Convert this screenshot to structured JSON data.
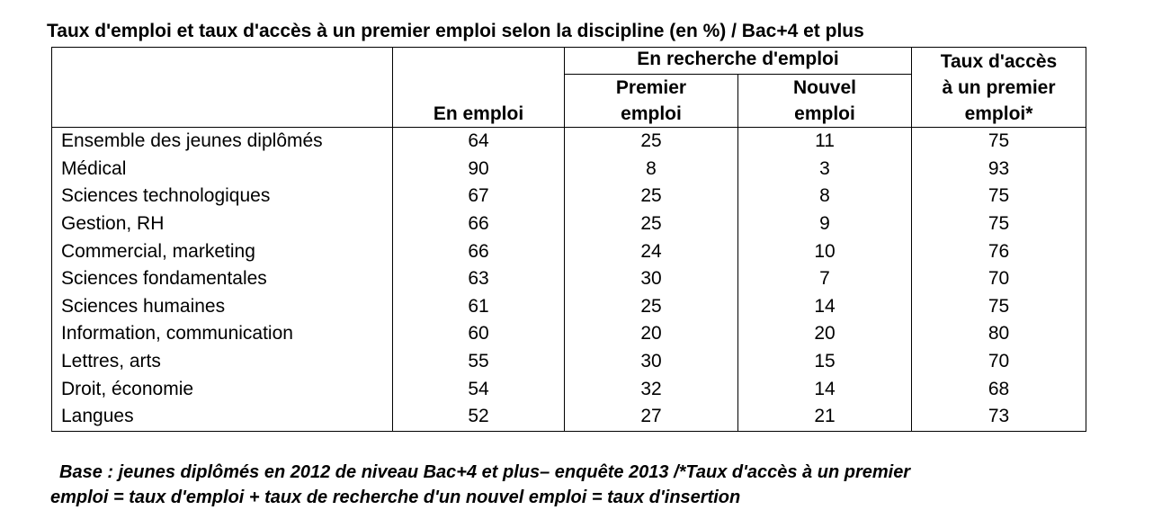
{
  "title": "Taux d'emploi et taux d'accès à un premier emploi selon la discipline (en %) / Bac+4 et plus",
  "table": {
    "headers": {
      "en_emploi": "En emploi",
      "group": "En recherche d'emploi",
      "premier_l1": "Premier",
      "premier_l2": "emploi",
      "nouvel_l1": "Nouvel",
      "nouvel_l2": "emploi",
      "acces_l1": "Taux d'accès",
      "acces_l2": "à un premier",
      "acces_l3": "emploi*"
    },
    "rows": [
      {
        "label": "Ensemble des jeunes diplômés",
        "en_emploi": "64",
        "premier": "25",
        "nouvel": "11",
        "acces": "75"
      },
      {
        "label": "Médical",
        "en_emploi": "90",
        "premier": "8",
        "nouvel": "3",
        "acces": "93"
      },
      {
        "label": "Sciences technologiques",
        "en_emploi": "67",
        "premier": "25",
        "nouvel": "8",
        "acces": "75"
      },
      {
        "label": "Gestion, RH",
        "en_emploi": "66",
        "premier": "25",
        "nouvel": "9",
        "acces": "75"
      },
      {
        "label": "Commercial, marketing",
        "en_emploi": "66",
        "premier": "24",
        "nouvel": "10",
        "acces": "76"
      },
      {
        "label": "Sciences fondamentales",
        "en_emploi": "63",
        "premier": "30",
        "nouvel": "7",
        "acces": "70"
      },
      {
        "label": "Sciences humaines",
        "en_emploi": "61",
        "premier": "25",
        "nouvel": "14",
        "acces": "75"
      },
      {
        "label": "Information, communication",
        "en_emploi": "60",
        "premier": "20",
        "nouvel": "20",
        "acces": "80"
      },
      {
        "label": "Lettres, arts",
        "en_emploi": "55",
        "premier": "30",
        "nouvel": "15",
        "acces": "70"
      },
      {
        "label": "Droit, économie",
        "en_emploi": "54",
        "premier": "32",
        "nouvel": "14",
        "acces": "68"
      },
      {
        "label": "Langues",
        "en_emploi": "52",
        "premier": "27",
        "nouvel": "21",
        "acces": "73"
      }
    ]
  },
  "note": {
    "line1": "Base : jeunes diplômés en 2012  de niveau Bac+4 et plus– enquête 2013 /*Taux d'accès à un premier",
    "line2": "emploi = taux d'emploi + taux de recherche d'un nouvel emploi = taux d'insertion"
  }
}
